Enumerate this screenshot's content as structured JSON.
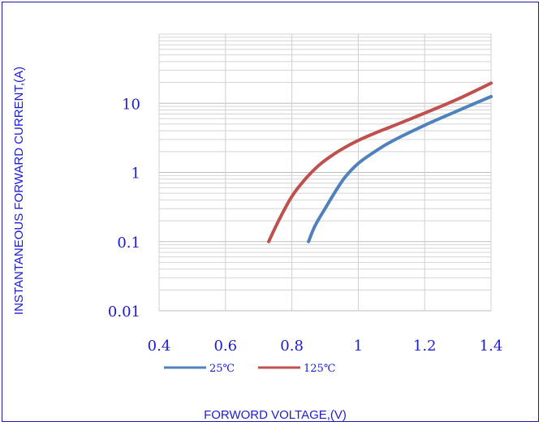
{
  "chart_data": {
    "type": "line",
    "title": "",
    "xlabel": "FORWORD VOLTAGE,(V)",
    "ylabel": "INSTANTANEOUS FORWARD CURRENT,(A)",
    "x_scale": "linear",
    "y_scale": "log",
    "xlim": [
      0.4,
      1.4
    ],
    "ylim": [
      0.01,
      100
    ],
    "x_ticks": [
      0.4,
      0.6,
      0.8,
      1,
      1.2,
      1.4
    ],
    "x_tick_labels": [
      "0.4",
      "0.6",
      "0.8",
      "1",
      "1.2",
      "1.4"
    ],
    "y_ticks": [
      0.01,
      0.1,
      1,
      10
    ],
    "y_tick_labels": [
      "0.01",
      "0.1",
      "1",
      "10"
    ],
    "grid": true,
    "legend_position": "bottom",
    "series": [
      {
        "name": "25℃",
        "color": "#4f81bd",
        "x": [
          0.85,
          0.87,
          0.9,
          0.93,
          0.96,
          1.0,
          1.05,
          1.1,
          1.2,
          1.3,
          1.4
        ],
        "y": [
          0.1,
          0.17,
          0.3,
          0.52,
          0.85,
          1.35,
          2.0,
          2.8,
          4.8,
          7.8,
          12.5
        ]
      },
      {
        "name": "125℃",
        "color": "#c0504d",
        "x": [
          0.73,
          0.76,
          0.8,
          0.84,
          0.88,
          0.92,
          0.96,
          1.0,
          1.05,
          1.1,
          1.2,
          1.3,
          1.4
        ],
        "y": [
          0.1,
          0.2,
          0.45,
          0.8,
          1.25,
          1.75,
          2.3,
          2.9,
          3.7,
          4.6,
          7.2,
          11.5,
          19.5
        ]
      }
    ]
  }
}
